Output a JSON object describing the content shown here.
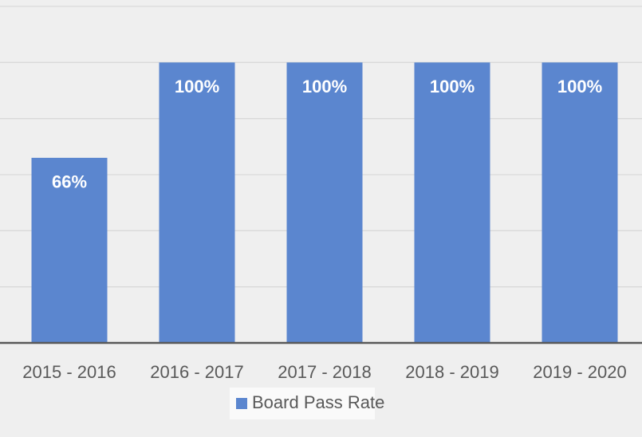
{
  "chart_data": {
    "type": "bar",
    "categories": [
      "2015 - 2016",
      "2016 - 2017",
      "2017 - 2018",
      "2018 - 2019",
      "2019 - 2020"
    ],
    "series": [
      {
        "name": "Board Pass Rate",
        "color": "#5b86cf",
        "values": [
          66,
          100,
          100,
          100,
          100
        ]
      }
    ],
    "value_labels": [
      "66%",
      "100%",
      "100%",
      "100%",
      "100%"
    ],
    "ylim": [
      0,
      120
    ],
    "yticks": [
      0,
      20,
      40,
      60,
      80,
      100,
      120
    ],
    "grid": true,
    "legend": "bottom"
  }
}
